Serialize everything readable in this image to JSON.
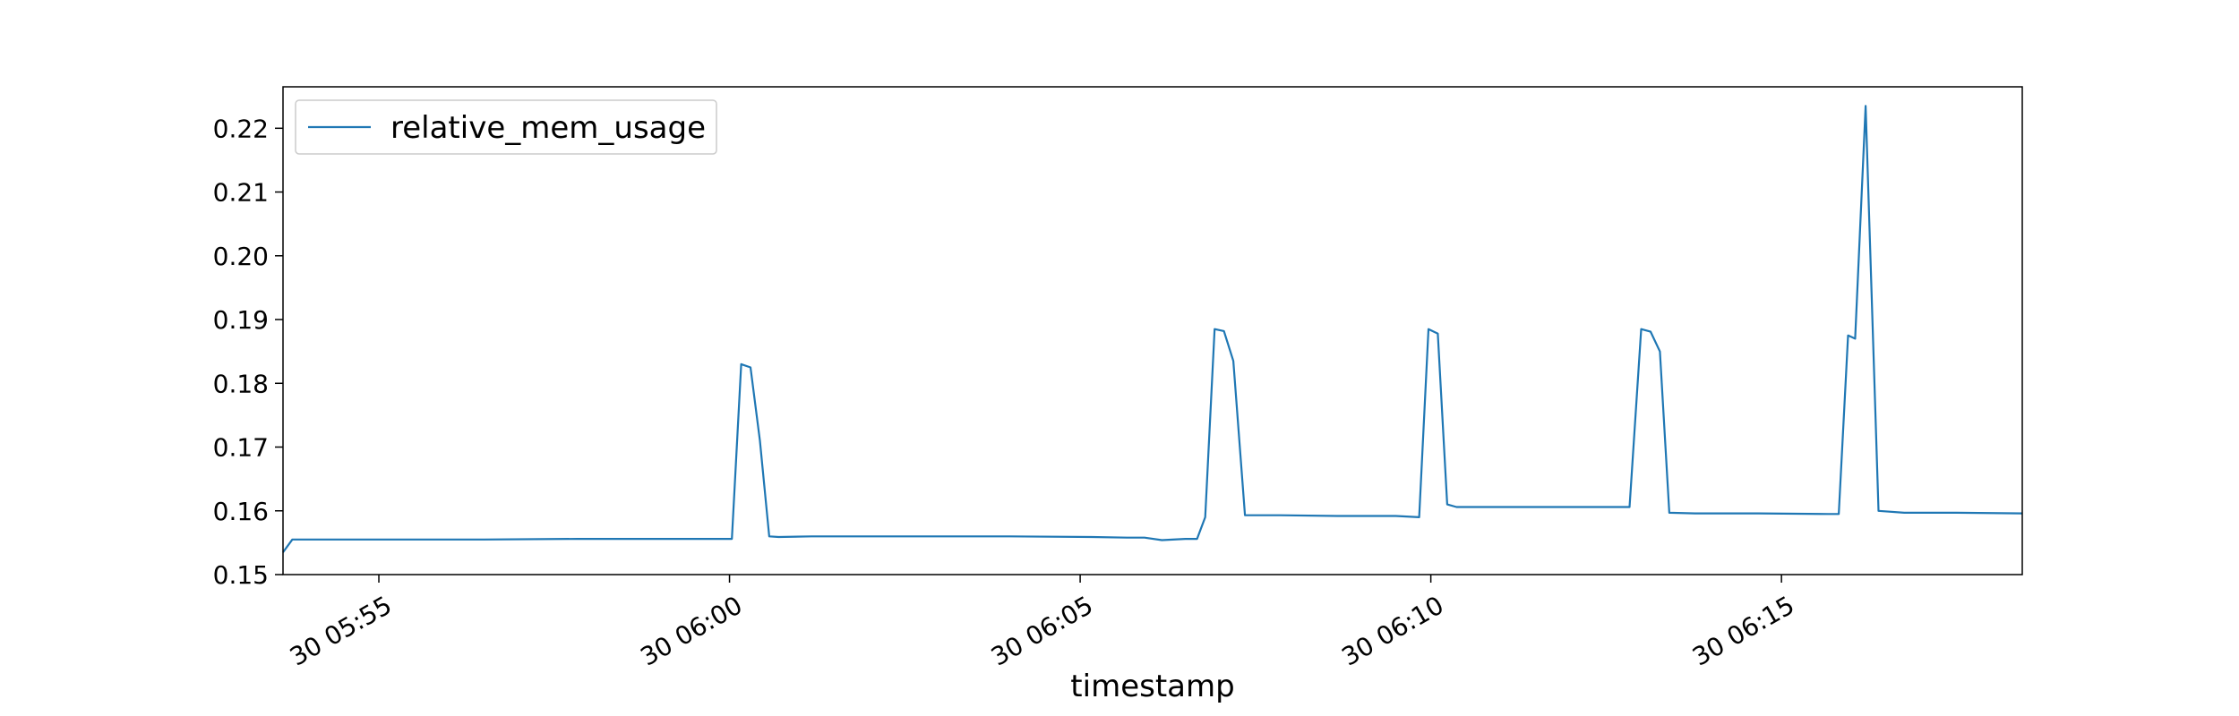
{
  "chart_data": {
    "type": "line",
    "xlabel": "timestamp",
    "ylabel": "",
    "title": "",
    "x_range": [
      "30 05:53:38",
      "30 06:18:26"
    ],
    "ylim": [
      0.15,
      0.2265
    ],
    "x_ticks": [
      {
        "time": "30 05:55:00",
        "label": "30 05:55"
      },
      {
        "time": "30 06:00:00",
        "label": "30 06:00"
      },
      {
        "time": "30 06:05:00",
        "label": "30 06:05"
      },
      {
        "time": "30 06:10:00",
        "label": "30 06:10"
      },
      {
        "time": "30 06:15:00",
        "label": "30 06:15"
      }
    ],
    "y_ticks": [
      {
        "value": 0.15,
        "label": "0.15"
      },
      {
        "value": 0.16,
        "label": "0.16"
      },
      {
        "value": 0.17,
        "label": "0.17"
      },
      {
        "value": 0.18,
        "label": "0.18"
      },
      {
        "value": 0.19,
        "label": "0.19"
      },
      {
        "value": 0.2,
        "label": "0.20"
      },
      {
        "value": 0.21,
        "label": "0.21"
      },
      {
        "value": 0.22,
        "label": "0.22"
      }
    ],
    "legend": {
      "placement": "upper-left"
    },
    "grid": false,
    "series": [
      {
        "name": "relative_mem_usage",
        "color": "#1f77b4",
        "x": [
          "30 05:53:38",
          "30 05:53:46",
          "30 05:54:06",
          "30 05:55:10",
          "30 05:56:30",
          "30 05:57:50",
          "30 05:59:10",
          "30 06:00:02",
          "30 06:00:10",
          "30 06:00:18",
          "30 06:00:26",
          "30 06:00:34",
          "30 06:00:42",
          "30 06:01:10",
          "30 06:01:50",
          "30 06:02:10",
          "30 06:03:00",
          "30 06:04:00",
          "30 06:05:10",
          "30 06:05:40",
          "30 06:05:55",
          "30 06:06:10",
          "30 06:06:30",
          "30 06:06:40",
          "30 06:06:47",
          "30 06:06:55",
          "30 06:07:03",
          "30 06:07:11",
          "30 06:07:21",
          "30 06:07:51",
          "30 06:08:40",
          "30 06:09:30",
          "30 06:09:50",
          "30 06:09:58",
          "30 06:10:06",
          "30 06:10:14",
          "30 06:10:22",
          "30 06:10:40",
          "30 06:11:20",
          "30 06:12:00",
          "30 06:12:50",
          "30 06:13:00",
          "30 06:13:08",
          "30 06:13:16",
          "30 06:13:24",
          "30 06:13:46",
          "30 06:14:40",
          "30 06:15:40",
          "30 06:15:49",
          "30 06:15:57",
          "30 06:16:03",
          "30 06:16:12",
          "30 06:16:23",
          "30 06:16:45",
          "30 06:17:30",
          "30 06:18:26"
        ],
        "values": [
          0.1535,
          0.1555,
          0.1555,
          0.1555,
          0.1555,
          0.1556,
          0.1556,
          0.1556,
          0.183,
          0.1825,
          0.171,
          0.156,
          0.1559,
          0.156,
          0.156,
          0.156,
          0.156,
          0.156,
          0.1559,
          0.1558,
          0.1558,
          0.1554,
          0.1556,
          0.1556,
          0.159,
          0.1885,
          0.1882,
          0.1835,
          0.1593,
          0.1593,
          0.1592,
          0.1592,
          0.159,
          0.1885,
          0.1878,
          0.161,
          0.1606,
          0.1606,
          0.1606,
          0.1606,
          0.1606,
          0.1885,
          0.1881,
          0.185,
          0.1597,
          0.1596,
          0.1596,
          0.1595,
          0.1595,
          0.1875,
          0.187,
          0.2235,
          0.16,
          0.1597,
          0.1597,
          0.1596
        ]
      }
    ]
  }
}
